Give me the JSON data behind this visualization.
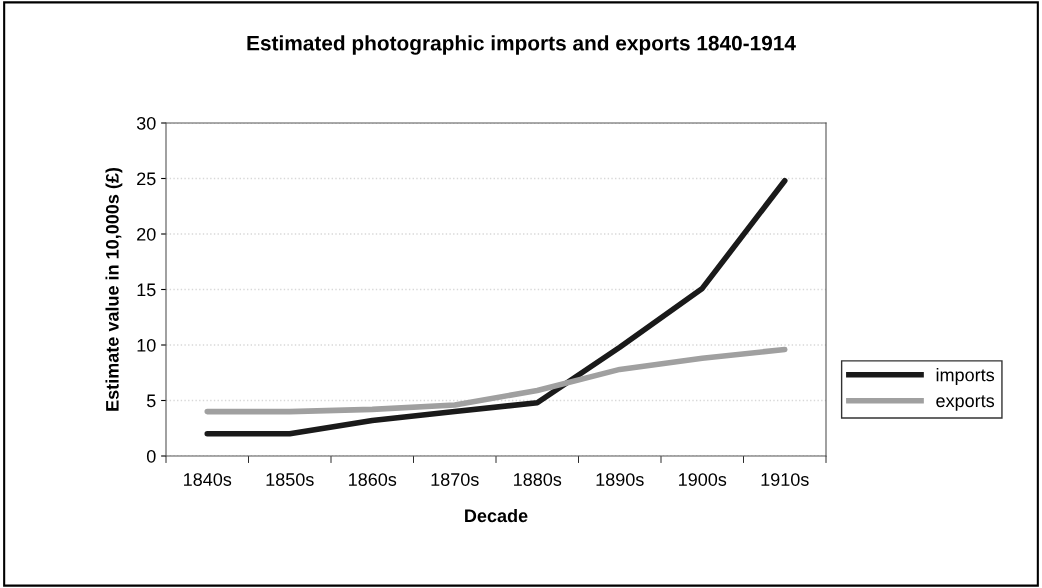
{
  "chart_data": {
    "type": "line",
    "title": "Estimated photographic imports and exports 1840-1914",
    "xlabel": "Decade",
    "ylabel": "Estimate value in 10,000s (£)",
    "categories": [
      "1840s",
      "1850s",
      "1860s",
      "1870s",
      "1880s",
      "1890s",
      "1900s",
      "1910s"
    ],
    "series": [
      {
        "name": "imports",
        "color": "#1a1a1a",
        "values": [
          2,
          2,
          3.2,
          4,
          4.8,
          9.8,
          15.1,
          24.8
        ]
      },
      {
        "name": "exports",
        "color": "#a0a0a0",
        "values": [
          4,
          4,
          4.2,
          4.6,
          5.9,
          7.8,
          8.8,
          9.6
        ]
      }
    ],
    "ylim": [
      0,
      30
    ],
    "yticks": [
      0,
      5,
      10,
      15,
      20,
      25,
      30
    ],
    "grid": "y",
    "legend": "right",
    "marker": "none",
    "line_style": "solid"
  }
}
